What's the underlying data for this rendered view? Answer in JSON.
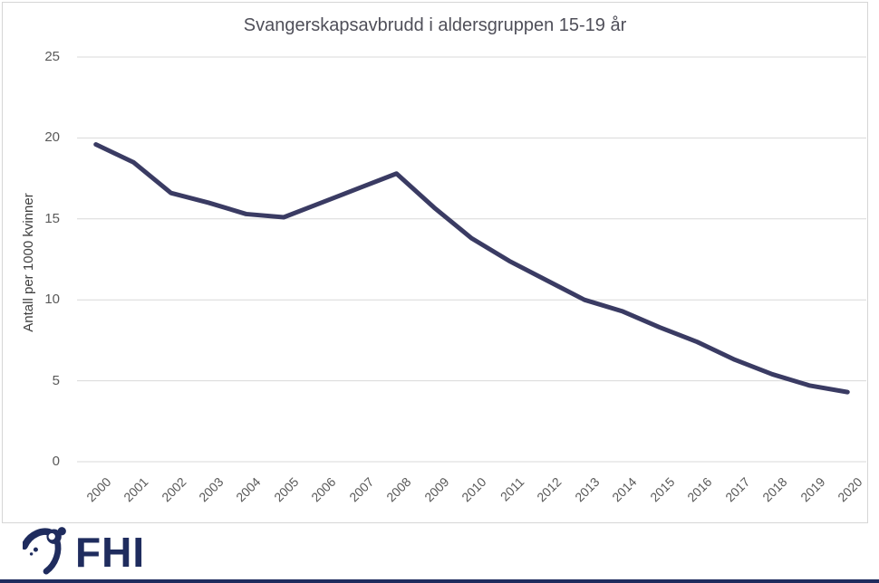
{
  "chart_data": {
    "type": "line",
    "title": "Svangerskapsavbrudd i aldersgruppen 15-19 år",
    "xlabel": "",
    "ylabel": "Antall per 1000 kvinner",
    "x": [
      "2000",
      "2001",
      "2002",
      "2003",
      "2004",
      "2005",
      "2006",
      "2007",
      "2008",
      "2009",
      "2010",
      "2011",
      "2012",
      "2013",
      "2014",
      "2015",
      "2016",
      "2017",
      "2018",
      "2019",
      "2020"
    ],
    "series": [
      {
        "name": "Antall per 1000 kvinner",
        "values": [
          19.6,
          18.5,
          16.6,
          16.0,
          15.3,
          15.1,
          16.0,
          16.9,
          17.8,
          15.7,
          13.8,
          12.4,
          11.2,
          10.0,
          9.3,
          8.3,
          7.4,
          6.3,
          5.4,
          4.7,
          4.3
        ]
      }
    ],
    "ylim": [
      0,
      25
    ],
    "yticks": [
      0,
      5,
      10,
      15,
      20,
      25
    ],
    "grid": "horizontal",
    "legend": "none",
    "line_color": "#3a3b63",
    "gridline_color": "#d9d9d9"
  },
  "logo": {
    "text": "FHI"
  },
  "colors": {
    "brand_navy": "#1f2c5e",
    "frame_border": "#d6d6d6",
    "title_text": "#4f4f59",
    "tick_text": "#595959",
    "axis_title_text": "#3f3f3f"
  }
}
